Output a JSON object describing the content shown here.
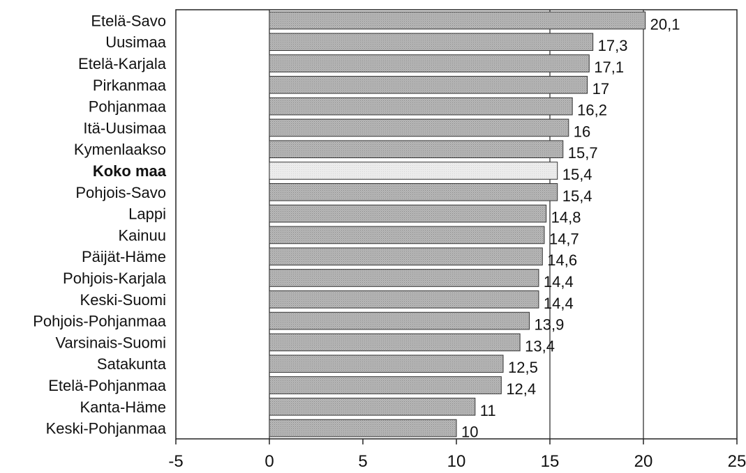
{
  "chart_data": {
    "type": "bar",
    "orientation": "horizontal",
    "categories": [
      "Etelä-Savo",
      "Uusimaa",
      "Etelä-Karjala",
      "Pirkanmaa",
      "Pohjanmaa",
      "Itä-Uusimaa",
      "Kymenlaakso",
      "Koko maa",
      "Pohjois-Savo",
      "Lappi",
      "Kainuu",
      "Päijät-Häme",
      "Pohjois-Karjala",
      "Keski-Suomi",
      "Pohjois-Pohjanmaa",
      "Varsinais-Suomi",
      "Satakunta",
      "Etelä-Pohjanmaa",
      "Kanta-Häme",
      "Keski-Pohjanmaa"
    ],
    "values": [
      20.1,
      17.3,
      17.1,
      17,
      16.2,
      16,
      15.7,
      15.4,
      15.4,
      14.8,
      14.7,
      14.6,
      14.4,
      14.4,
      13.9,
      13.4,
      12.5,
      12.4,
      11,
      10
    ],
    "value_labels": [
      "20,1",
      "17,3",
      "17,1",
      "17",
      "16,2",
      "16",
      "15,7",
      "15,4",
      "15,4",
      "14,8",
      "14,7",
      "14,6",
      "14,4",
      "14,4",
      "13,9",
      "13,4",
      "12,5",
      "12,4",
      "11",
      "10"
    ],
    "highlight_category": "Koko maa",
    "xlim": [
      -5,
      25
    ],
    "xticks": [
      -5,
      0,
      5,
      10,
      15,
      20,
      25
    ],
    "xtick_labels": [
      "-5",
      "0",
      "5",
      "10",
      "15",
      "20",
      "25"
    ],
    "gridlines": [
      0,
      15,
      20
    ],
    "title": "",
    "xlabel": "",
    "ylabel": "",
    "colors": {
      "bar": "#b8b8b8",
      "highlight_bar": "#ececec",
      "axis": "#222222"
    }
  }
}
